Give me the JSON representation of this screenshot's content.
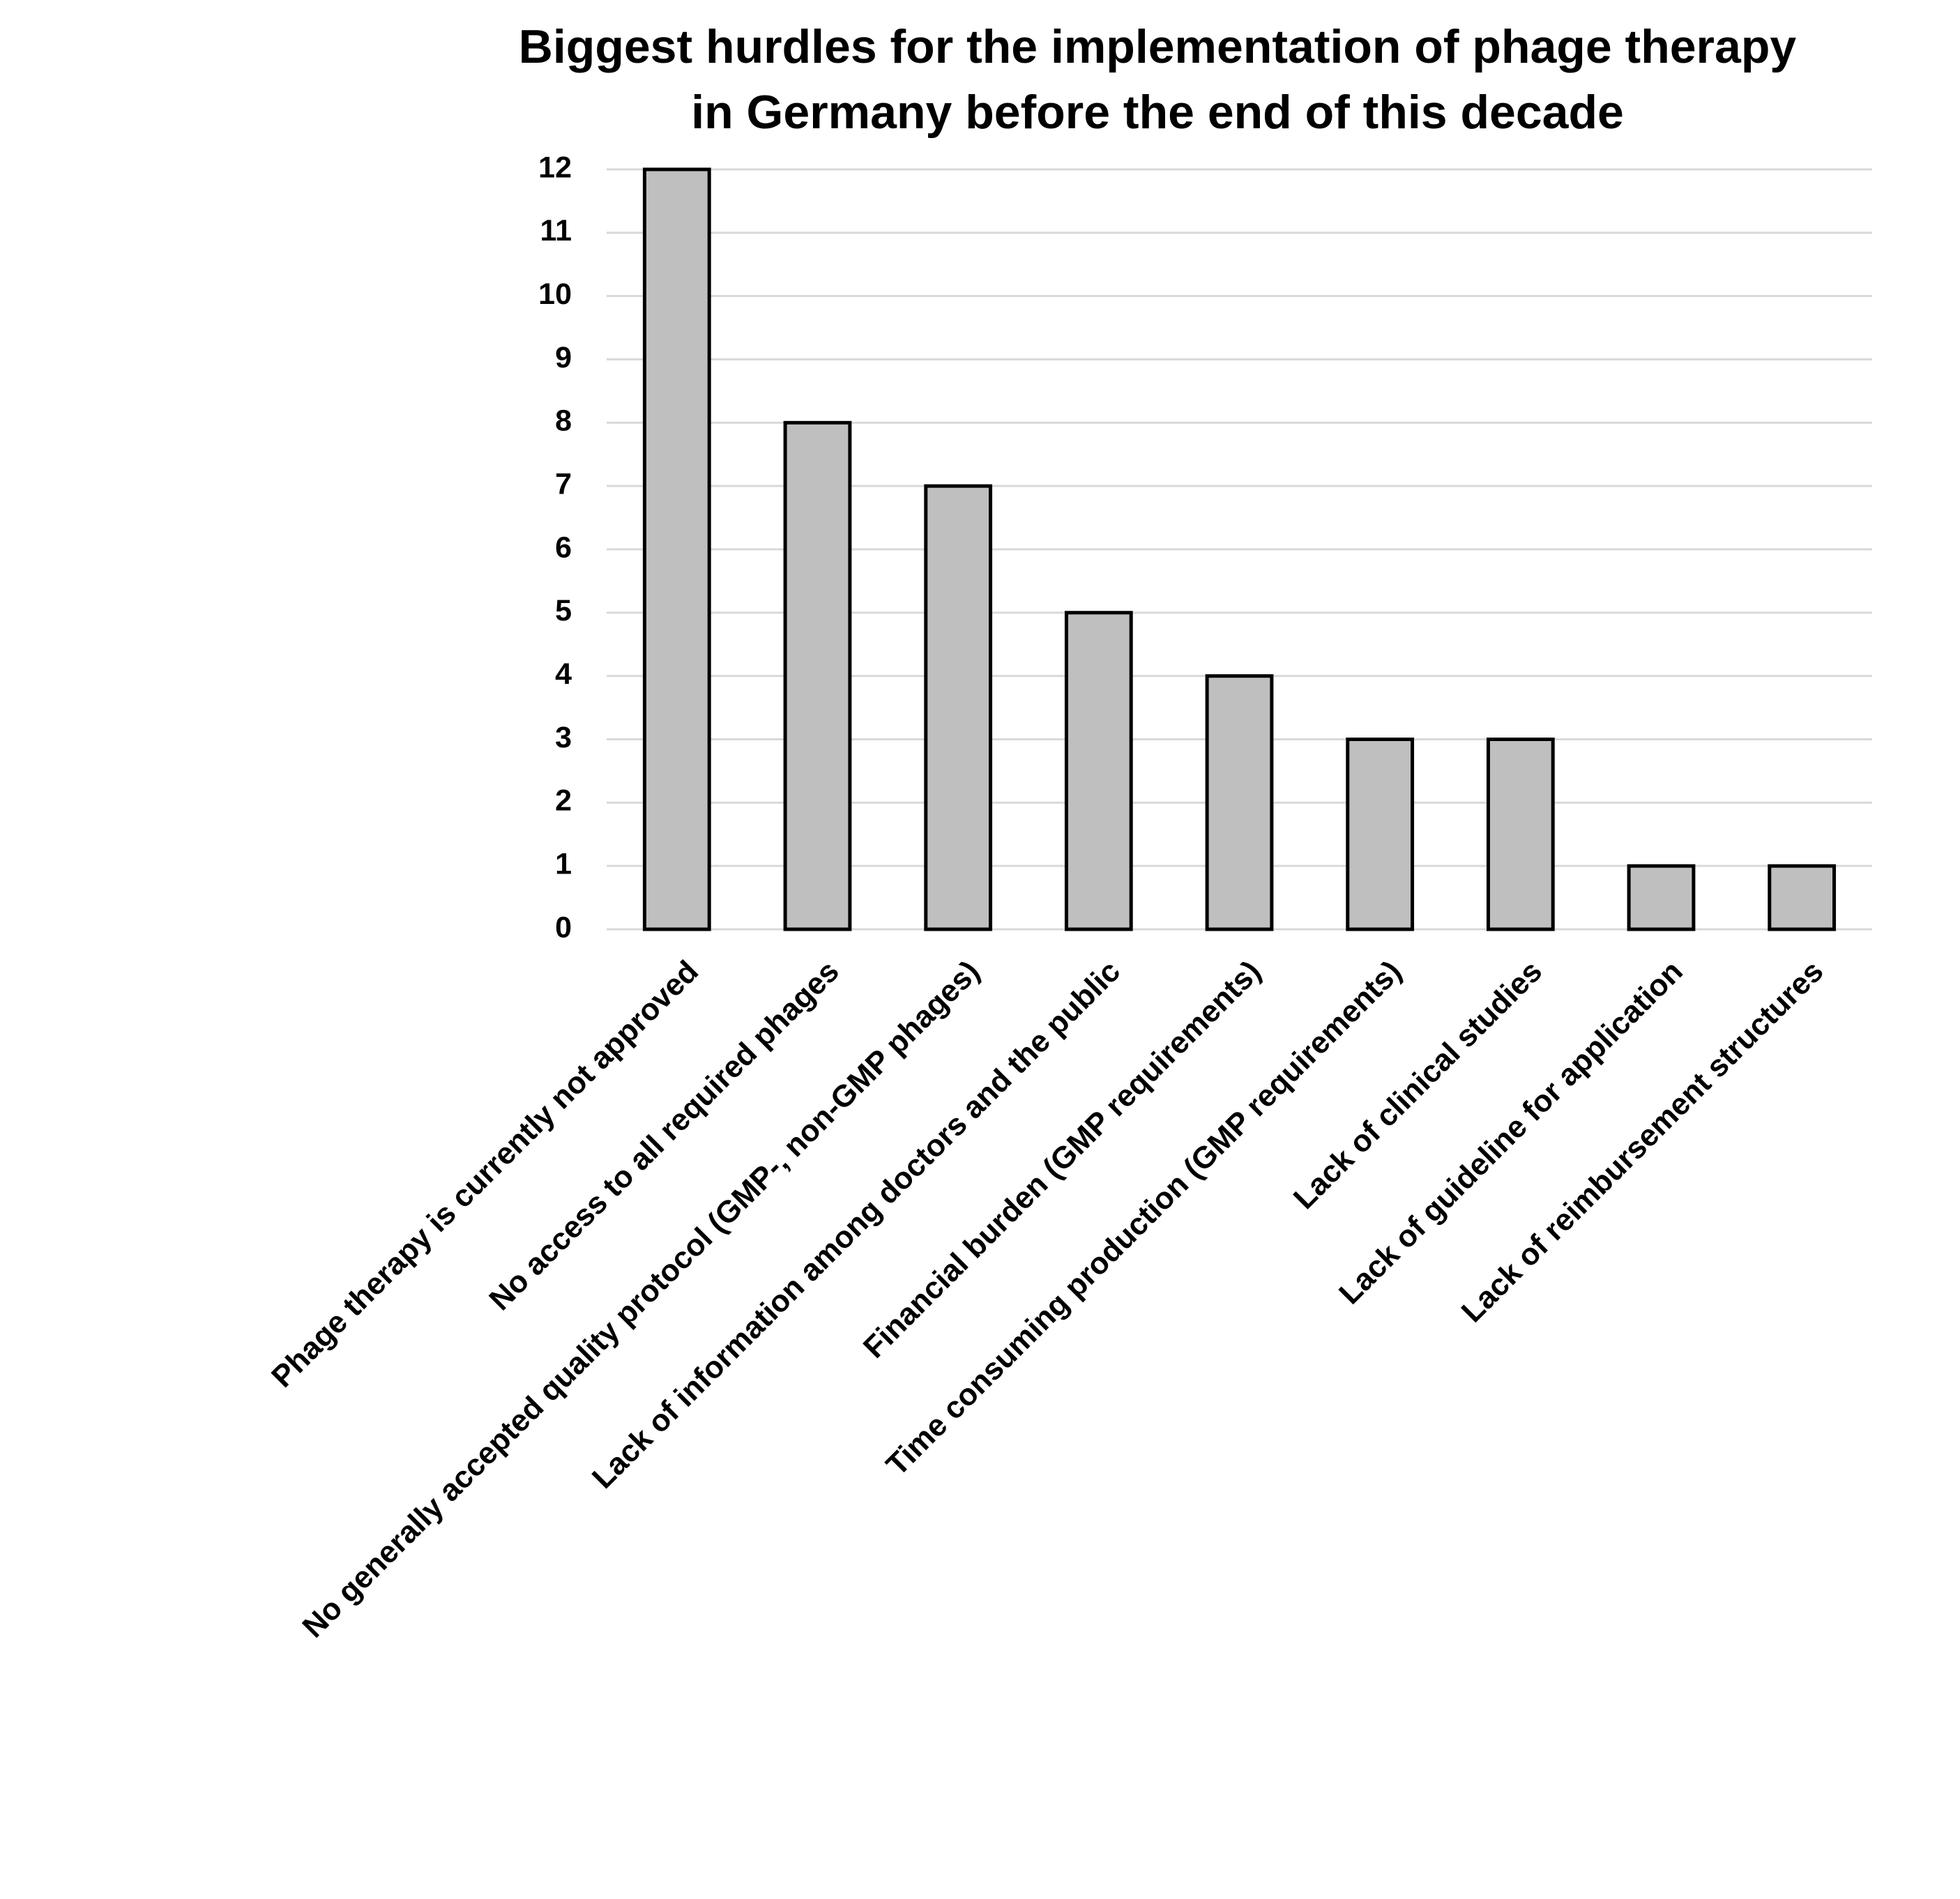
{
  "chart_data": {
    "type": "bar",
    "title": [
      "Biggest hurdles for the implementation of phage therapy",
      "in Germany before the end of this decade"
    ],
    "categories": [
      "Phage therapy is currently not approved",
      "No access to all required phages",
      "No generally accepted quality protocol (GMP-, non-GMP phages)",
      "Lack of information among doctors and the public",
      "Financial burden (GMP requirements)",
      "Time consuming production (GMP requirements)",
      "Lack of clinical studies",
      "Lack of guideline for application",
      "Lack of reimbursement structures"
    ],
    "values": [
      12,
      8,
      7,
      5,
      4,
      3,
      3,
      1,
      1
    ],
    "color": "#bfbfbf",
    "ylim": [
      0,
      12
    ],
    "yticks": [
      0,
      1,
      2,
      3,
      4,
      5,
      6,
      7,
      8,
      9,
      10,
      11,
      12
    ],
    "grid": true
  }
}
